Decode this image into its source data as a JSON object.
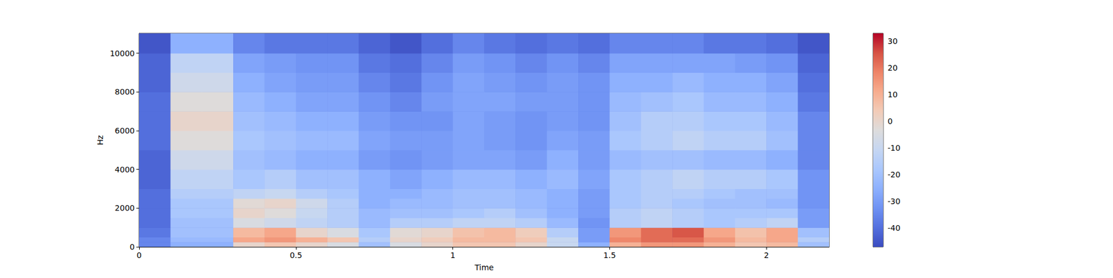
{
  "chart_data": {
    "type": "heatmap",
    "x_label": "Time",
    "y_label": "Hz",
    "xlim": [
      0,
      2.2
    ],
    "xticks": [
      0,
      0.5,
      1,
      1.5,
      2
    ],
    "ylim": [
      0,
      11025
    ],
    "yticks": [
      0,
      2000,
      4000,
      6000,
      8000,
      10000
    ],
    "x_edges": [
      0,
      0.1,
      0.2,
      0.3,
      0.4,
      0.5,
      0.6,
      0.7,
      0.8,
      0.9,
      1.0,
      1.1,
      1.2,
      1.3,
      1.4,
      1.5,
      1.6,
      1.7,
      1.8,
      1.9,
      2.0,
      2.1,
      2.2
    ],
    "y_edges": [
      0,
      250,
      500,
      1000,
      1500,
      2000,
      2500,
      3000,
      4000,
      5000,
      6000,
      7000,
      8000,
      9000,
      10000,
      11025
    ],
    "cells": [
      [
        -35,
        -25,
        -25,
        0,
        5,
        0,
        -5,
        -20,
        -5,
        0,
        5,
        5,
        0,
        -10,
        -25,
        10,
        15,
        15,
        10,
        5,
        8,
        -20
      ],
      [
        -35,
        -22,
        -22,
        12,
        15,
        10,
        5,
        -15,
        0,
        3,
        8,
        8,
        5,
        -10,
        -30,
        18,
        22,
        22,
        15,
        8,
        12,
        -15
      ],
      [
        -38,
        -20,
        -20,
        8,
        12,
        0,
        -5,
        -18,
        -2,
        0,
        6,
        8,
        3,
        -15,
        -30,
        15,
        22,
        25,
        12,
        6,
        12,
        -20
      ],
      [
        -40,
        -20,
        -20,
        -5,
        -8,
        -12,
        -15,
        -22,
        -15,
        -15,
        -12,
        -12,
        -15,
        -22,
        -32,
        -15,
        -12,
        -15,
        -18,
        -15,
        -12,
        -30
      ],
      [
        -40,
        -18,
        -18,
        0,
        -3,
        -10,
        -15,
        -22,
        -20,
        -20,
        -18,
        -15,
        -20,
        -25,
        -30,
        -15,
        -12,
        -15,
        -18,
        -18,
        -18,
        -30
      ],
      [
        -40,
        -18,
        -18,
        -2,
        0,
        -8,
        -15,
        -25,
        -22,
        -22,
        -20,
        -20,
        -22,
        -25,
        -30,
        -18,
        -15,
        -18,
        -20,
        -20,
        -22,
        -32
      ],
      [
        -40,
        -15,
        -15,
        -12,
        -10,
        -15,
        -18,
        -25,
        -25,
        -22,
        -20,
        -20,
        -22,
        -25,
        -30,
        -18,
        -15,
        -15,
        -18,
        -20,
        -20,
        -32
      ],
      [
        -42,
        -12,
        -12,
        -18,
        -15,
        -20,
        -20,
        -25,
        -28,
        -25,
        -22,
        -22,
        -25,
        -22,
        -28,
        -18,
        -15,
        -12,
        -15,
        -15,
        -18,
        -32
      ],
      [
        -42,
        -8,
        -8,
        -20,
        -22,
        -25,
        -25,
        -30,
        -32,
        -30,
        -28,
        -28,
        -30,
        -25,
        -30,
        -22,
        -20,
        -20,
        -22,
        -22,
        -25,
        -35
      ],
      [
        -40,
        -3,
        -3,
        -18,
        -20,
        -22,
        -22,
        -28,
        -30,
        -30,
        -28,
        -30,
        -32,
        -28,
        -30,
        -18,
        -15,
        -12,
        -15,
        -15,
        -20,
        -35
      ],
      [
        -40,
        0,
        0,
        -20,
        -22,
        -25,
        -25,
        -30,
        -32,
        -32,
        -28,
        -30,
        -32,
        -30,
        -32,
        -20,
        -15,
        -15,
        -18,
        -18,
        -22,
        -35
      ],
      [
        -40,
        -3,
        -3,
        -22,
        -25,
        -28,
        -28,
        -32,
        -35,
        -30,
        -28,
        -28,
        -30,
        -30,
        -32,
        -22,
        -20,
        -18,
        -22,
        -22,
        -25,
        -38
      ],
      [
        -42,
        -8,
        -8,
        -25,
        -28,
        -30,
        -30,
        -35,
        -38,
        -32,
        -28,
        -30,
        -32,
        -30,
        -32,
        -25,
        -25,
        -22,
        -25,
        -25,
        -28,
        -40
      ],
      [
        -42,
        -12,
        -12,
        -28,
        -30,
        -32,
        -32,
        -38,
        -40,
        -35,
        -30,
        -32,
        -35,
        -32,
        -35,
        -28,
        -28,
        -28,
        -28,
        -30,
        -32,
        -42
      ],
      [
        -45,
        -25,
        -25,
        -35,
        -38,
        -38,
        -38,
        -42,
        -45,
        -40,
        -35,
        -38,
        -40,
        -38,
        -40,
        -35,
        -35,
        -35,
        -38,
        -38,
        -40,
        -45
      ]
    ],
    "colorbar": {
      "range": [
        -47,
        33
      ],
      "ticks": [
        -40,
        -30,
        -20,
        -10,
        0,
        10,
        20,
        30
      ]
    }
  }
}
